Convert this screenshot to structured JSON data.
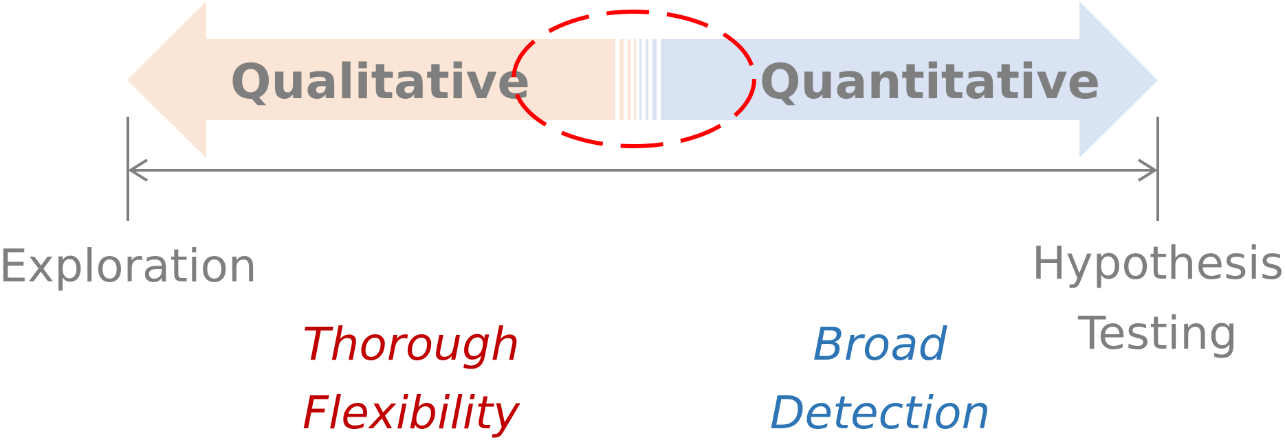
{
  "spectrum": {
    "left_method": "Qualitative",
    "right_method": "Quantitative",
    "left_end": "Exploration",
    "right_end_line1": "Hypothesis",
    "right_end_line2": "Testing",
    "left_quality_line1": "Thorough",
    "left_quality_line2": "Flexibility",
    "right_quality_line1": "Broad",
    "right_quality_line2": "Detection"
  },
  "colors": {
    "qualitative_fill": "#fbe5d6",
    "quantitative_fill": "#dae3f3",
    "label_gray": "#7f7f7f",
    "axis_gray": "#808080",
    "highlight_red": "#ff0000",
    "quality_red": "#c00000",
    "quality_blue": "#2e75b6"
  }
}
